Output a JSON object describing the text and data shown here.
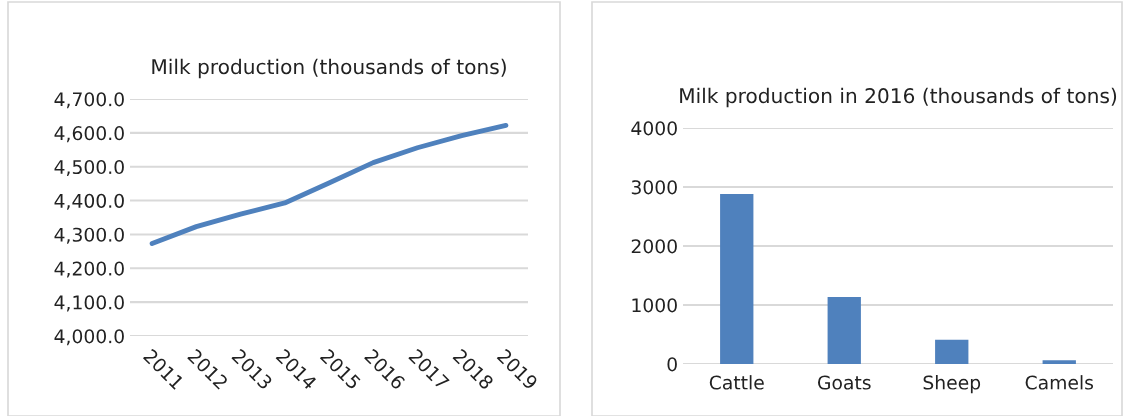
{
  "chart_data": [
    {
      "type": "line",
      "title": "Milk production (thousands of tons)",
      "categories": [
        "2011",
        "2012",
        "2013",
        "2014",
        "2015",
        "2016",
        "2017",
        "2018",
        "2019"
      ],
      "series": [
        {
          "color": "#4f81bd",
          "values": [
            4273,
            4323,
            4360,
            4393,
            4452,
            4512,
            4556,
            4592,
            4622
          ]
        }
      ],
      "ylim": [
        4000,
        4700
      ],
      "yticks": [
        {
          "value": 4000,
          "label": "4,000.0"
        },
        {
          "value": 4100,
          "label": "4,100.0"
        },
        {
          "value": 4200,
          "label": "4,200.0"
        },
        {
          "value": 4300,
          "label": "4,300.0"
        },
        {
          "value": 4400,
          "label": "4,400.0"
        },
        {
          "value": 4500,
          "label": "4,500.0"
        },
        {
          "value": 4600,
          "label": "4,600.0"
        },
        {
          "value": 4700,
          "label": "4,700.0"
        }
      ],
      "grid": "y",
      "legend": false,
      "marker": "none",
      "line_style": "solid"
    },
    {
      "type": "bar",
      "title": "Milk production in 2016 (thousands of tons)",
      "categories": [
        "Cattle",
        "Goats",
        "Sheep",
        "Camels"
      ],
      "series": [
        {
          "color": "#4f81bd",
          "values": [
            2881,
            1136,
            410,
            64
          ]
        }
      ],
      "ylim": [
        0,
        4000
      ],
      "yticks": [
        0,
        1000,
        2000,
        3000,
        4000
      ],
      "grid": "y",
      "legend": false
    }
  ]
}
